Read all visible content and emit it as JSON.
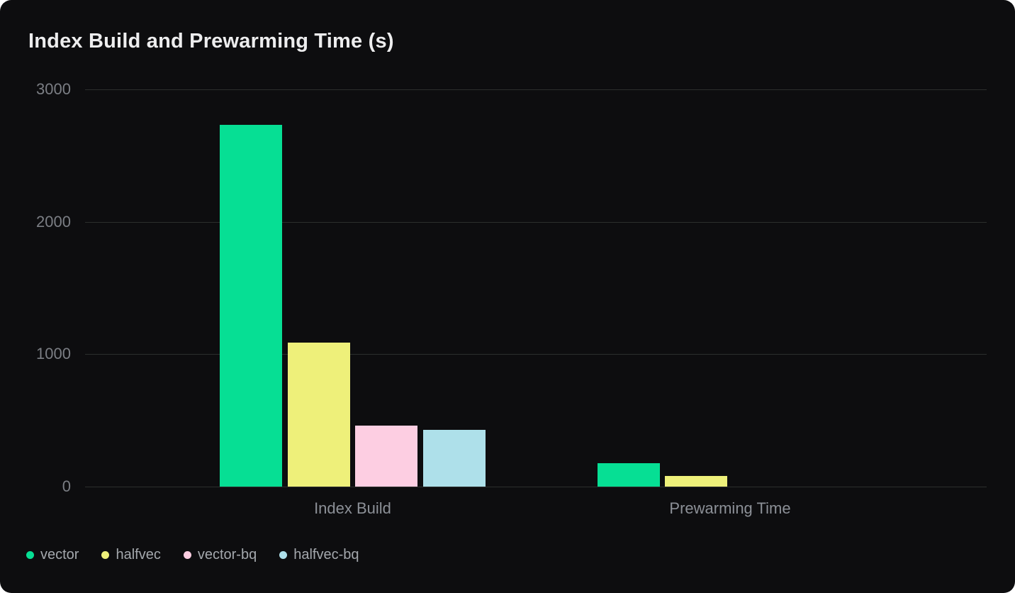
{
  "card": {
    "background": "#0d0d0f",
    "page_background": "#ffffff",
    "gridline_color": "#2c2e2d"
  },
  "chart_data": {
    "type": "bar",
    "title": "Index Build and Prewarming Time (s)",
    "categories": [
      "Index Build",
      "Prewarming Time"
    ],
    "series": [
      {
        "name": "vector",
        "color": "#06df94",
        "values": [
          2730,
          175
        ]
      },
      {
        "name": "halfvec",
        "color": "#eef07a",
        "values": [
          1085,
          80
        ]
      },
      {
        "name": "vector-bq",
        "color": "#fdcee2",
        "values": [
          460,
          0
        ]
      },
      {
        "name": "halfvec-bq",
        "color": "#aee0ea",
        "values": [
          430,
          0
        ]
      }
    ],
    "ylim": [
      0,
      3000
    ],
    "yticks": [
      0,
      1000,
      2000,
      3000
    ],
    "grid": true,
    "legend_position": "bottom-left",
    "xlabel": "",
    "ylabel": ""
  }
}
